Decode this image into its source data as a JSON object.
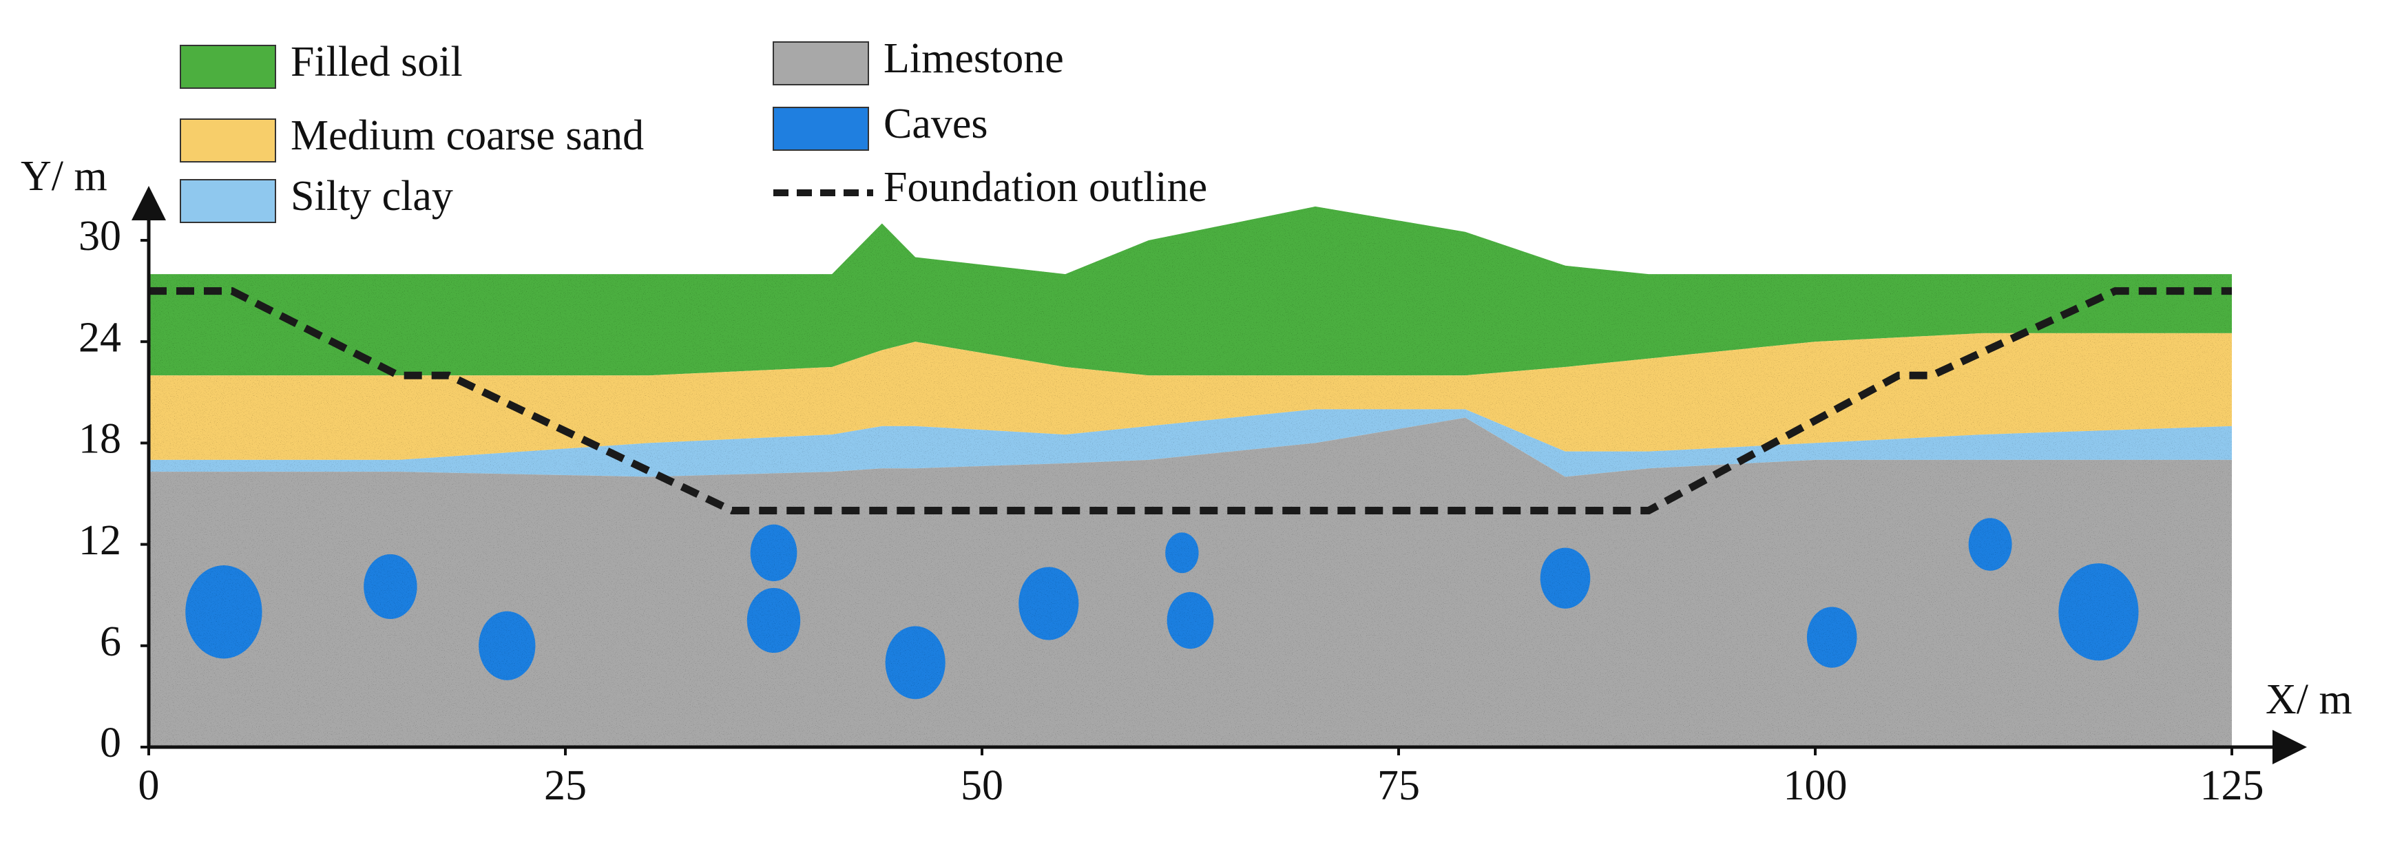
{
  "chart_data": {
    "type": "section",
    "x_label": "X/ m",
    "y_label": "Y/ m",
    "xlim": [
      0,
      125
    ],
    "ylim": [
      0,
      30
    ],
    "xticks": [
      0,
      25,
      50,
      75,
      100,
      125
    ],
    "yticks": [
      0,
      6,
      12,
      18,
      24,
      30
    ],
    "x": [
      0,
      15,
      30,
      41,
      44,
      46,
      55,
      60,
      70,
      79,
      85,
      90,
      100,
      110,
      125
    ],
    "series": [
      {
        "name": "Filled soil",
        "color": "#4caf3f",
        "values": [
          28,
          28,
          28,
          28,
          31,
          29,
          28,
          30,
          32,
          30.5,
          28.5,
          28,
          28,
          28,
          28
        ]
      },
      {
        "name": "Medium coarse sand",
        "color": "#f7ce6a",
        "values": [
          22,
          22,
          22,
          22.5,
          23.5,
          24,
          22.5,
          22,
          22,
          22,
          22.5,
          23,
          24,
          24.5,
          24.5
        ]
      },
      {
        "name": "Silty clay",
        "color": "#8fc8ee",
        "values": [
          17,
          17,
          18,
          18.5,
          19,
          19,
          18.5,
          19,
          20,
          20,
          17.5,
          17.5,
          18,
          18.5,
          19
        ]
      },
      {
        "name": "Limestone",
        "color": "#a8a8a8",
        "values": [
          16.3,
          16.3,
          16,
          16.3,
          16.5,
          16.5,
          16.8,
          17,
          18,
          19.5,
          16,
          16.5,
          17,
          17,
          17
        ]
      },
      {
        "name": "Caves",
        "color": "#1f7fe0",
        "x": [
          4.5,
          14.5,
          21.5,
          37.5,
          37.5,
          46,
          54,
          62,
          62.5,
          85,
          101,
          110.5,
          117
        ],
        "values": [
          8,
          9.5,
          6,
          11.5,
          7.5,
          5,
          8.5,
          11.5,
          7.5,
          10,
          6.5,
          12,
          8
        ],
        "sizes": [
          2.3,
          1.6,
          1.7,
          1.4,
          1.6,
          1.8,
          1.8,
          1,
          1.4,
          1.5,
          1.5,
          1.3,
          2.4
        ]
      },
      {
        "name": "Foundation outline",
        "color": "#1a1a1a",
        "x": [
          0,
          5,
          15,
          18,
          35,
          90,
          105,
          107,
          118,
          125
        ],
        "values": [
          27,
          27,
          22,
          22,
          14,
          14,
          22,
          22,
          27,
          27
        ]
      }
    ]
  }
}
